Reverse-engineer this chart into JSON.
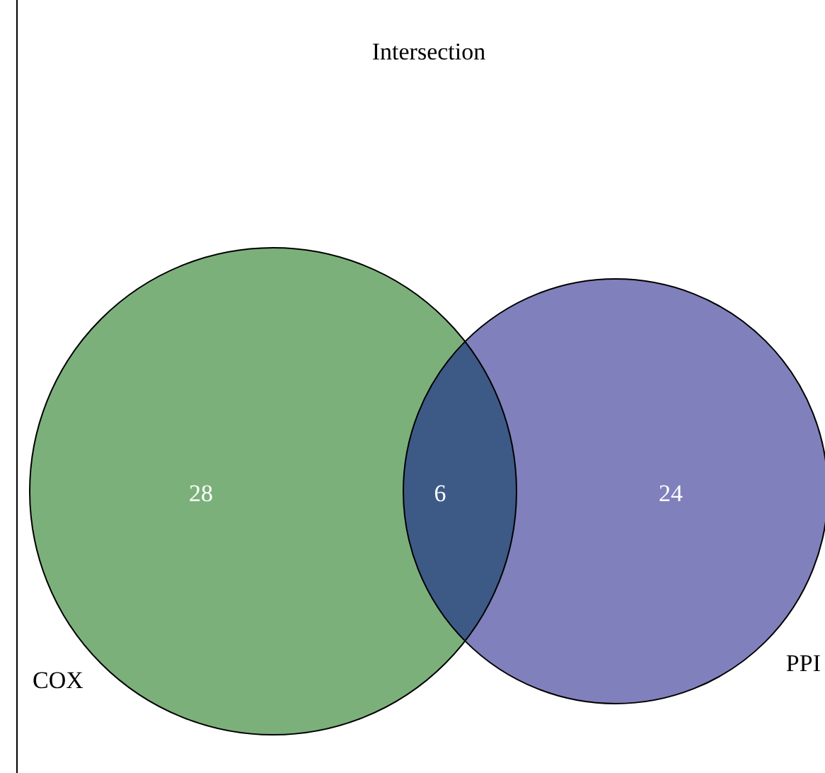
{
  "chart_data": {
    "type": "other",
    "title": "Intersection",
    "categories": [
      "COX",
      null,
      "PPI"
    ],
    "values": [
      28,
      6,
      24
    ],
    "colors": [
      "#7cb07b",
      "#3d5a87",
      "#8080bc"
    ],
    "data_labels": true
  }
}
